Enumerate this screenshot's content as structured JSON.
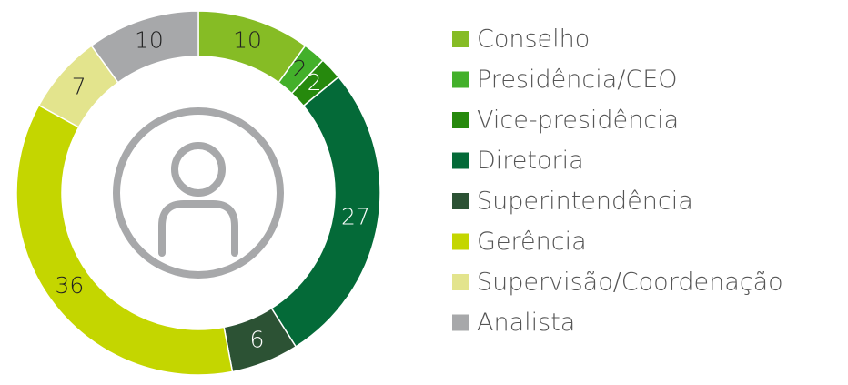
{
  "chart_data": {
    "type": "donut",
    "categories": [
      "Conselho",
      "Presidência/CEO",
      "Vice-presidência",
      "Diretoria",
      "Superintendência",
      "Gerência",
      "Supervisão/Coordenação",
      "Analista"
    ],
    "values": [
      10,
      2,
      2,
      27,
      6,
      36,
      7,
      10
    ],
    "colors": [
      "#86bc25",
      "#43b02a",
      "#26890d",
      "#046a38",
      "#2c5234",
      "#c4d600",
      "#e3e48d",
      "#a7a8aa"
    ]
  }
}
